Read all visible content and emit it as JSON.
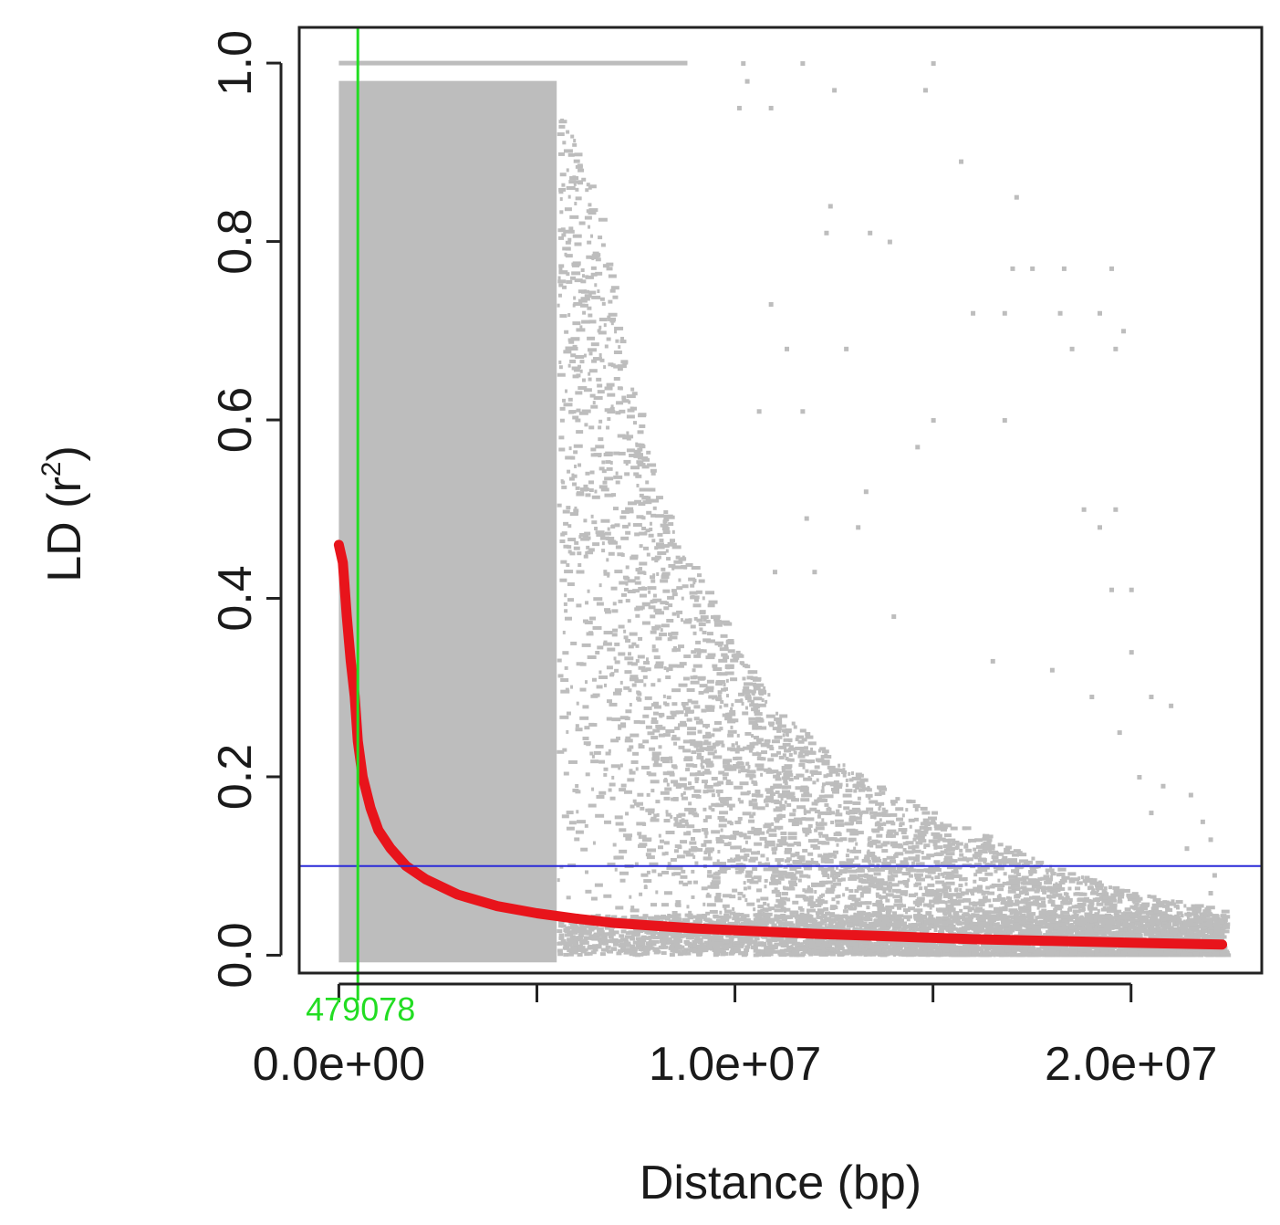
{
  "chart_data": {
    "type": "scatter",
    "title": "",
    "xlabel": "Distance (bp)",
    "ylabel_main": "LD (r",
    "ylabel_sup": "2",
    "ylabel_close": ")",
    "xlim": [
      -1000000,
      23300000
    ],
    "ylim": [
      -0.02,
      1.04
    ],
    "x_ticks": [
      0,
      5000000,
      10000000,
      15000000,
      20000000
    ],
    "x_tick_labels": [
      {
        "value": 0,
        "label": "0.0e+00"
      },
      {
        "value": 10000000,
        "label": "1.0e+07"
      },
      {
        "value": 20000000,
        "label": "2.0e+07"
      }
    ],
    "y_ticks": [
      0.0,
      0.2,
      0.4,
      0.6,
      0.8,
      1.0
    ],
    "y_tick_labels": [
      "0.0",
      "0.2",
      "0.4",
      "0.6",
      "0.8",
      "1.0"
    ],
    "grid": false,
    "colors": {
      "points": "#bdbdbd",
      "fit_curve": "#e8141b",
      "threshold_line": "#2a2ad8",
      "decay_marker": "#22dd22",
      "axis": "#222222"
    },
    "series": [
      {
        "kind": "points",
        "dense_region": {
          "x": [
            0,
            5500000
          ],
          "y": [
            0.0,
            0.98
          ]
        },
        "upper_envelope": [
          [
            0,
            1.0
          ],
          [
            1000000,
            0.98
          ],
          [
            4700000,
            0.98
          ],
          [
            5500000,
            0.96
          ],
          [
            6500000,
            0.85
          ],
          [
            7000000,
            0.72
          ],
          [
            7500000,
            0.62
          ],
          [
            8000000,
            0.52
          ],
          [
            9000000,
            0.43
          ],
          [
            10000000,
            0.35
          ],
          [
            11000000,
            0.28
          ],
          [
            12500000,
            0.22
          ],
          [
            14000000,
            0.18
          ],
          [
            16000000,
            0.14
          ],
          [
            18000000,
            0.1
          ],
          [
            20000000,
            0.07
          ],
          [
            22300000,
            0.05
          ]
        ],
        "horizontal_band": {
          "x": [
            0,
            8800000
          ],
          "y": 1.0
        },
        "sparse_points": [
          [
            10200000,
            1.0
          ],
          [
            11700000,
            1.0
          ],
          [
            15000000,
            1.0
          ],
          [
            10300000,
            0.98
          ],
          [
            12500000,
            0.97
          ],
          [
            14800000,
            0.97
          ],
          [
            10100000,
            0.95
          ],
          [
            10900000,
            0.95
          ],
          [
            15700000,
            0.89
          ],
          [
            17100000,
            0.85
          ],
          [
            12400000,
            0.84
          ],
          [
            12300000,
            0.81
          ],
          [
            13400000,
            0.81
          ],
          [
            13900000,
            0.8
          ],
          [
            17000000,
            0.77
          ],
          [
            17500000,
            0.77
          ],
          [
            18300000,
            0.77
          ],
          [
            19500000,
            0.77
          ],
          [
            10900000,
            0.73
          ],
          [
            16000000,
            0.72
          ],
          [
            16800000,
            0.72
          ],
          [
            18200000,
            0.72
          ],
          [
            19200000,
            0.72
          ],
          [
            19800000,
            0.7
          ],
          [
            11300000,
            0.68
          ],
          [
            12800000,
            0.68
          ],
          [
            18500000,
            0.68
          ],
          [
            19600000,
            0.68
          ],
          [
            10600000,
            0.61
          ],
          [
            11700000,
            0.61
          ],
          [
            15000000,
            0.6
          ],
          [
            16800000,
            0.6
          ],
          [
            14600000,
            0.57
          ],
          [
            11800000,
            0.49
          ],
          [
            13300000,
            0.52
          ],
          [
            18800000,
            0.5
          ],
          [
            19200000,
            0.48
          ],
          [
            13100000,
            0.48
          ],
          [
            19600000,
            0.5
          ],
          [
            11000000,
            0.43
          ],
          [
            12000000,
            0.43
          ],
          [
            14000000,
            0.38
          ],
          [
            19500000,
            0.41
          ],
          [
            20000000,
            0.41
          ],
          [
            16500000,
            0.33
          ],
          [
            18000000,
            0.32
          ],
          [
            20000000,
            0.34
          ],
          [
            19000000,
            0.29
          ],
          [
            20500000,
            0.29
          ],
          [
            21000000,
            0.28
          ],
          [
            19700000,
            0.25
          ],
          [
            20200000,
            0.2
          ],
          [
            20800000,
            0.19
          ],
          [
            21500000,
            0.18
          ],
          [
            20500000,
            0.16
          ],
          [
            21800000,
            0.15
          ],
          [
            22000000,
            0.13
          ],
          [
            21400000,
            0.12
          ],
          [
            22100000,
            0.09
          ],
          [
            22000000,
            0.07
          ]
        ]
      },
      {
        "kind": "curve",
        "curve": [
          [
            0,
            0.46
          ],
          [
            100000,
            0.44
          ],
          [
            200000,
            0.38
          ],
          [
            300000,
            0.33
          ],
          [
            400000,
            0.29
          ],
          [
            479078,
            0.24
          ],
          [
            600000,
            0.2
          ],
          [
            800000,
            0.165
          ],
          [
            1000000,
            0.14
          ],
          [
            1300000,
            0.12
          ],
          [
            1700000,
            0.1
          ],
          [
            2200000,
            0.085
          ],
          [
            3000000,
            0.068
          ],
          [
            4000000,
            0.055
          ],
          [
            5000000,
            0.047
          ],
          [
            6000000,
            0.041
          ],
          [
            7000000,
            0.036
          ],
          [
            8000000,
            0.033
          ],
          [
            9000000,
            0.03
          ],
          [
            10000000,
            0.028
          ],
          [
            12000000,
            0.024
          ],
          [
            14000000,
            0.021
          ],
          [
            16000000,
            0.018
          ],
          [
            18000000,
            0.016
          ],
          [
            20000000,
            0.014
          ],
          [
            22300000,
            0.012
          ]
        ]
      }
    ],
    "threshold_y": 0.1,
    "decay_distance": 479078,
    "decay_label": "479078"
  }
}
